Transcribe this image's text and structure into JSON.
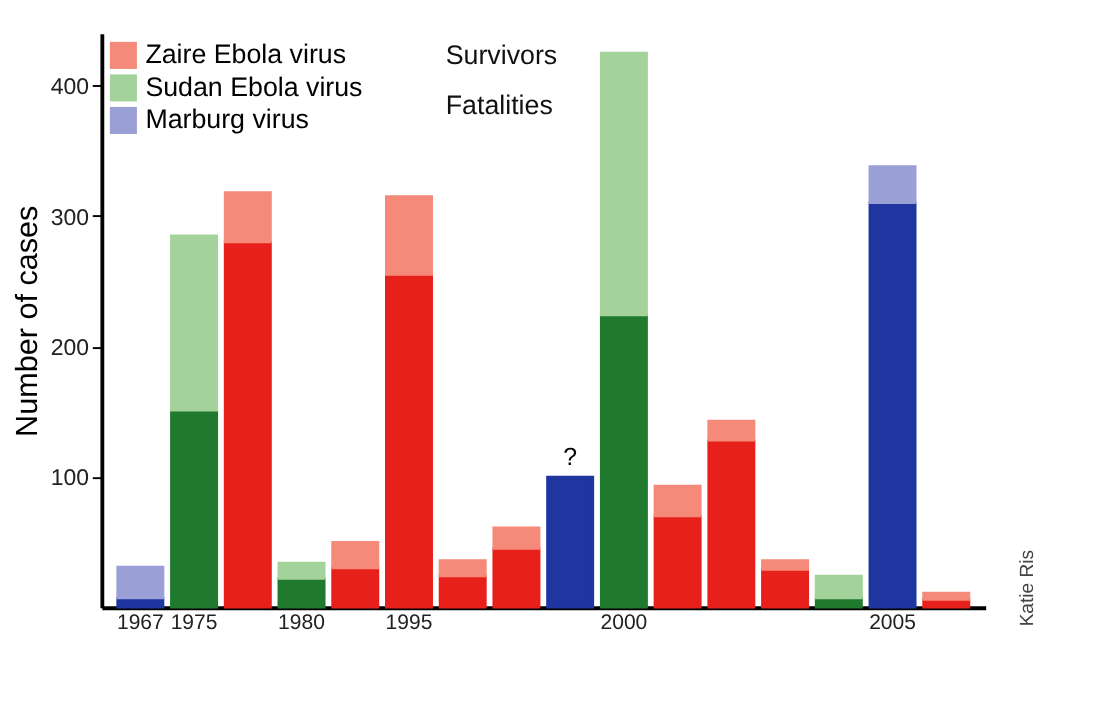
{
  "chart_data": {
    "type": "bar",
    "stacked": true,
    "ylabel": "Number of cases",
    "categories": [
      "1967",
      "1975",
      null,
      "1980",
      null,
      "1995",
      null,
      null,
      null,
      "2000",
      null,
      null,
      null,
      null,
      "2005",
      null
    ],
    "series": [
      {
        "color": "#e8201c",
        "values": [
          null,
          null,
          280,
          null,
          30,
          255,
          24,
          45,
          null,
          null,
          70,
          128,
          29,
          null,
          null,
          6
        ]
      },
      {
        "color": "#1f7a2e",
        "values": [
          null,
          151,
          null,
          22,
          null,
          null,
          null,
          null,
          null,
          224,
          null,
          null,
          null,
          7,
          null,
          null
        ]
      },
      {
        "color": "#1f36a0",
        "values": [
          7,
          null,
          null,
          null,
          null,
          null,
          null,
          null,
          100,
          null,
          null,
          null,
          null,
          null,
          310,
          null
        ],
        "value_labels": [
          null,
          null,
          null,
          null,
          null,
          null,
          null,
          null,
          "?",
          null,
          null,
          null,
          null,
          null,
          null,
          null
        ]
      },
      {
        "name": "Zaire Ebola virus",
        "color": "#f58a7a",
        "values": [
          null,
          null,
          38,
          null,
          20,
          60,
          12,
          16,
          null,
          null,
          23,
          15,
          7,
          null,
          null,
          5
        ]
      },
      {
        "name": "Sudan Ebola virus",
        "color": "#a3d29a",
        "values": [
          null,
          134,
          null,
          12,
          null,
          null,
          null,
          null,
          null,
          201,
          null,
          null,
          null,
          17,
          null,
          null
        ]
      },
      {
        "name": "Marburg virus",
        "color": "#9a9fd6",
        "values": [
          24,
          null,
          null,
          null,
          null,
          null,
          null,
          null,
          null,
          null,
          null,
          null,
          null,
          null,
          28,
          null
        ]
      }
    ],
    "ylim": [
      0,
      440
    ],
    "yticks": [
      100,
      200,
      300,
      400
    ],
    "grid": false,
    "legend": "top left",
    "annotations": [
      "Survivors",
      "Fatalities",
      "Katie Ris"
    ]
  }
}
